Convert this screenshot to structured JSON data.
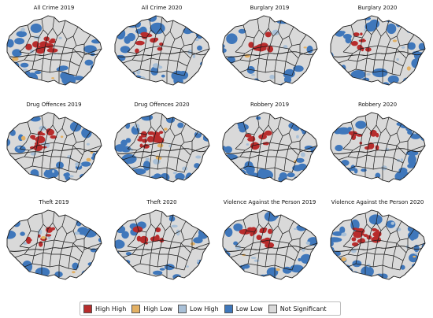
{
  "colors": {
    "high_high": "#b82c2c",
    "high_low": "#e3b063",
    "low_high": "#a9c0d7",
    "low_low": "#3f77bb",
    "not_significant": "#d9d9d9",
    "boundary": "#1a1a1a"
  },
  "panels": [
    {
      "title": "All Crime 2019",
      "mix": {
        "hh": 0.1,
        "hl": 0.02,
        "lh": 0.06,
        "ll": 0.22
      }
    },
    {
      "title": "All Crime 2020",
      "mix": {
        "hh": 0.1,
        "hl": 0.02,
        "lh": 0.06,
        "ll": 0.24
      }
    },
    {
      "title": "Burglary 2019",
      "mix": {
        "hh": 0.07,
        "hl": 0.02,
        "lh": 0.03,
        "ll": 0.16
      }
    },
    {
      "title": "Burglary 2020",
      "mix": {
        "hh": 0.07,
        "hl": 0.02,
        "lh": 0.04,
        "ll": 0.26
      }
    },
    {
      "title": "Drug Offences 2019",
      "mix": {
        "hh": 0.12,
        "hl": 0.03,
        "lh": 0.08,
        "ll": 0.22
      }
    },
    {
      "title": "Drug Offences 2020",
      "mix": {
        "hh": 0.13,
        "hl": 0.03,
        "lh": 0.09,
        "ll": 0.2
      }
    },
    {
      "title": "Robbery 2019",
      "mix": {
        "hh": 0.08,
        "hl": 0.01,
        "lh": 0.04,
        "ll": 0.28
      }
    },
    {
      "title": "Robbery 2020",
      "mix": {
        "hh": 0.08,
        "hl": 0.01,
        "lh": 0.04,
        "ll": 0.3
      }
    },
    {
      "title": "Theft 2019",
      "mix": {
        "hh": 0.07,
        "hl": 0.02,
        "lh": 0.03,
        "ll": 0.18
      }
    },
    {
      "title": "Theft 2020",
      "mix": {
        "hh": 0.07,
        "hl": 0.02,
        "lh": 0.03,
        "ll": 0.18
      }
    },
    {
      "title": "Violence Against the Person 2019",
      "mix": {
        "hh": 0.11,
        "hl": 0.02,
        "lh": 0.05,
        "ll": 0.24
      }
    },
    {
      "title": "Violence Against the Person 2020",
      "mix": {
        "hh": 0.13,
        "hl": 0.02,
        "lh": 0.06,
        "ll": 0.26
      }
    }
  ],
  "legend": [
    {
      "label": "High High",
      "color_key": "high_high"
    },
    {
      "label": "High Low",
      "color_key": "high_low"
    },
    {
      "label": "Low High",
      "color_key": "low_high"
    },
    {
      "label": "Low Low",
      "color_key": "low_low"
    },
    {
      "label": "Not Significant",
      "color_key": "not_significant"
    }
  ]
}
